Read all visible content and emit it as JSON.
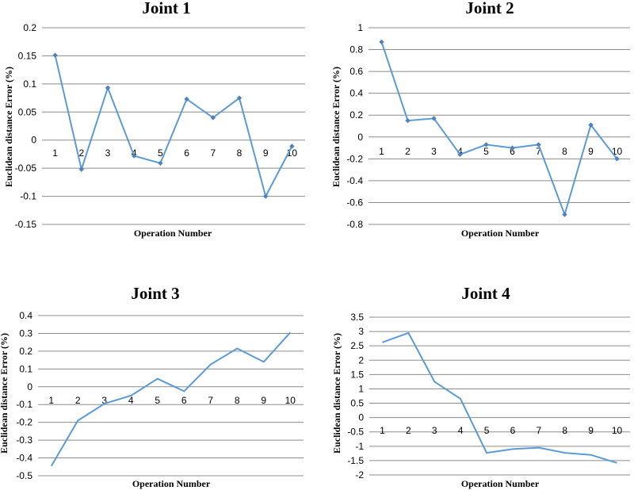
{
  "chart_data": [
    {
      "type": "line",
      "title": "Joint 1",
      "xlabel": "Operation Number",
      "ylabel": "Euclidean distance Error (%)",
      "ylim": [
        -0.15,
        0.2
      ],
      "yticks": [
        0.2,
        0.15,
        0.1,
        0.05,
        0,
        -0.05,
        -0.1,
        -0.15
      ],
      "ytick_labels": [
        "0.2",
        "0.15",
        "0.1",
        "0.05",
        "0",
        "-0.05",
        "-0.1",
        "-0.15"
      ],
      "x": [
        "1",
        "2",
        "3",
        "4",
        "5",
        "6",
        "7",
        "8",
        "9",
        "10"
      ],
      "markers": true,
      "grid": true,
      "series": [
        {
          "values": [
            0.151,
            -0.052,
            0.093,
            -0.028,
            -0.041,
            0.073,
            0.04,
            0.075,
            -0.1,
            -0.011
          ]
        }
      ]
    },
    {
      "type": "line",
      "title": "Joint 2",
      "xlabel": "Operation Number",
      "ylabel": "Euclidean distance Error (%)",
      "ylim": [
        -0.8,
        1
      ],
      "yticks": [
        1,
        0.8,
        0.6,
        0.4,
        0.2,
        0,
        -0.2,
        -0.4,
        -0.6,
        -0.8
      ],
      "ytick_labels": [
        "1",
        "0.8",
        "0.6",
        "0.4",
        "0.2",
        "0",
        "-0.2",
        "-0.4",
        "-0.6",
        "-0.8"
      ],
      "x": [
        "1",
        "2",
        "3",
        "4",
        "5",
        "6",
        "7",
        "8",
        "9",
        "10"
      ],
      "markers": true,
      "grid": true,
      "series": [
        {
          "values": [
            0.87,
            0.15,
            0.17,
            -0.16,
            -0.07,
            -0.1,
            -0.07,
            -0.71,
            0.11,
            -0.2
          ]
        }
      ]
    },
    {
      "type": "line",
      "title": "Joint 3",
      "xlabel": "Operation Number",
      "ylabel": "Euclidean distance Error (%)",
      "ylim": [
        -0.5,
        0.4
      ],
      "yticks": [
        0.4,
        0.3,
        0.2,
        0.1,
        0,
        -0.1,
        -0.2,
        -0.3,
        -0.4,
        -0.5
      ],
      "ytick_labels": [
        "0.4",
        "0.3",
        "0.2",
        "0.1",
        "0",
        "-0.1",
        "-0.2",
        "-0.3",
        "-0.4",
        "-0.5"
      ],
      "x": [
        "1",
        "2",
        "3",
        "4",
        "5",
        "6",
        "7",
        "8",
        "9",
        "10"
      ],
      "markers": false,
      "grid": true,
      "series": [
        {
          "values": [
            -0.445,
            -0.19,
            -0.095,
            -0.05,
            0.045,
            -0.025,
            0.125,
            0.215,
            0.14,
            0.305
          ]
        }
      ]
    },
    {
      "type": "line",
      "title": "Joint 4",
      "xlabel": "Operation Number",
      "ylabel": "Euclidean distance Error (%)",
      "ylim": [
        -2,
        3.5
      ],
      "yticks": [
        3.5,
        3,
        2.5,
        2,
        1.5,
        1,
        0.5,
        0,
        -0.5,
        -1,
        -1.5,
        -2
      ],
      "ytick_labels": [
        "3.5",
        "3",
        "2.5",
        "2",
        "1.5",
        "1",
        "0.5",
        "0",
        "-0.5",
        "-1",
        "-1.5",
        "-2"
      ],
      "x": [
        "1",
        "2",
        "3",
        "4",
        "5",
        "6",
        "7",
        "8",
        "9",
        "10"
      ],
      "markers": false,
      "grid": true,
      "series": [
        {
          "values": [
            2.62,
            2.95,
            1.25,
            0.65,
            -1.23,
            -1.1,
            -1.05,
            -1.23,
            -1.3,
            -1.58
          ]
        }
      ]
    }
  ]
}
